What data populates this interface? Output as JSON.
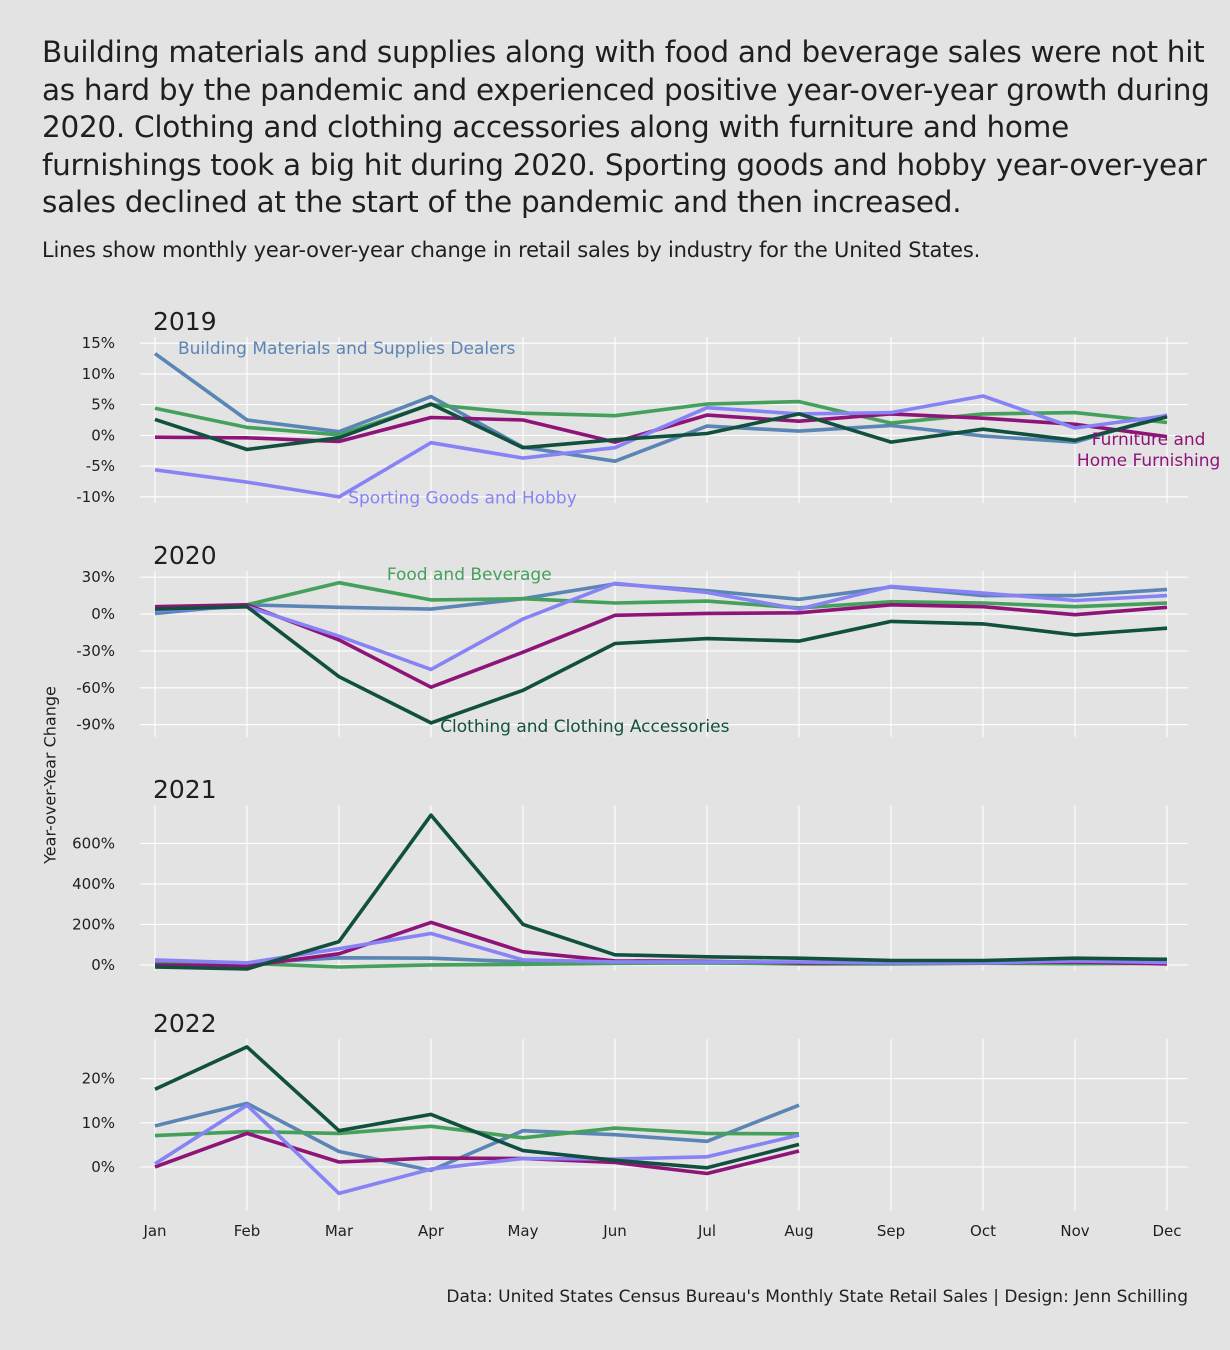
{
  "title": "Building materials and supplies along with food and beverage sales were not hit as hard by the pandemic and experienced positive year-over-year growth during 2020. Clothing and clothing accessories along with furniture and home furnishings took a big hit during 2020. Sporting goods and hobby year-over-year sales declined at the start of the pandemic and then increased.",
  "subtitle": "Lines show monthly year-over-year change in retail sales by industry for the United States.",
  "ylabel": "Year-over-Year Change",
  "caption": "Data: United States Census Bureau's Monthly State Retail Sales | Design: Jenn Schilling",
  "colors": {
    "building": "#5b85b5",
    "food": "#45a05c",
    "clothing": "#11503f",
    "furniture": "#8f1478",
    "sporting": "#8783f5",
    "grid": "#ffffff",
    "background": "#e3e3e3"
  },
  "chart_data": {
    "type": "line",
    "categories": [
      "Jan",
      "Feb",
      "Mar",
      "Apr",
      "May",
      "Jun",
      "Jul",
      "Aug",
      "Sep",
      "Oct",
      "Nov",
      "Dec"
    ],
    "panels": [
      {
        "title": "2019",
        "ylim": [
          -11,
          16
        ],
        "yticks": [
          -10,
          -5,
          0,
          5,
          10,
          15
        ],
        "ytick_labels": [
          "-10%",
          "-5%",
          "0%",
          "5%",
          "10%",
          "15%"
        ],
        "series": [
          {
            "key": "building",
            "name": "Building Materials and Supplies Dealers",
            "values": [
              13.3,
              2.5,
              0.6,
              6.3,
              -1.9,
              -4.2,
              1.5,
              0.7,
              1.6,
              -0.1,
              -1.1,
              3.3
            ]
          },
          {
            "key": "food",
            "values": [
              4.4,
              1.3,
              0.1,
              5.0,
              3.6,
              3.2,
              5.1,
              5.5,
              2.0,
              3.5,
              3.7,
              2.1
            ]
          },
          {
            "key": "clothing",
            "values": [
              2.6,
              -2.3,
              -0.4,
              5.1,
              -2.0,
              -0.7,
              0.3,
              3.5,
              -1.1,
              1.0,
              -0.8,
              3.0
            ]
          },
          {
            "key": "furniture",
            "name": "Furniture and Home Furnishing",
            "values": [
              -0.3,
              -0.4,
              -1.0,
              2.9,
              2.5,
              -1.1,
              3.3,
              2.3,
              3.5,
              2.8,
              1.8,
              -0.2
            ]
          },
          {
            "key": "sporting",
            "name": "Sporting Goods and Hobby",
            "values": [
              -5.6,
              -7.6,
              -10.0,
              -1.2,
              -3.7,
              -2.0,
              4.5,
              3.5,
              3.7,
              6.4,
              1.2,
              3.2
            ]
          }
        ],
        "labels": [
          {
            "key": "building",
            "lines": [
              "Building Materials and Supplies Dealers"
            ],
            "month": 0.25,
            "value": 13.2,
            "anchor": "start"
          },
          {
            "key": "sporting",
            "lines": [
              "Sporting Goods and Hobby"
            ],
            "month": 2.1,
            "value": -11.1,
            "anchor": "start"
          },
          {
            "key": "furniture",
            "lines": [
              "Furniture and",
              "Home Furnishing"
            ],
            "month": 10.8,
            "value": -1.6,
            "anchor": "middle"
          }
        ]
      },
      {
        "title": "2020",
        "ylim": [
          -100,
          35
        ],
        "yticks": [
          -90,
          -60,
          -30,
          0,
          30
        ],
        "ytick_labels": [
          "-90%",
          "-60%",
          "-30%",
          "0%",
          "30%"
        ],
        "series": [
          {
            "key": "building",
            "values": [
              0.5,
              7.5,
              5.5,
              4.0,
              12.5,
              24.5,
              19.0,
              12.0,
              22.0,
              15.0,
              15.0,
              20.0
            ]
          },
          {
            "key": "food",
            "name": "Food and Beverage",
            "values": [
              3.0,
              7.5,
              25.5,
              11.5,
              12.5,
              9.0,
              10.5,
              5.0,
              10.0,
              9.0,
              6.0,
              9.0
            ]
          },
          {
            "key": "clothing",
            "name": "Clothing and Clothing Accessories",
            "values": [
              4.0,
              6.0,
              -51.0,
              -88.5,
              -62.0,
              -24.0,
              -20.0,
              -22.0,
              -6.0,
              -8.0,
              -17.0,
              -11.5
            ]
          },
          {
            "key": "furniture",
            "values": [
              6.0,
              7.5,
              -21.0,
              -59.5,
              -31.0,
              -1.0,
              0.5,
              1.0,
              7.5,
              6.0,
              -0.5,
              5.5
            ]
          },
          {
            "key": "sporting",
            "values": [
              3.0,
              6.0,
              -18.0,
              -45.0,
              -4.0,
              25.0,
              17.5,
              4.0,
              22.5,
              17.0,
              11.0,
              15.0
            ]
          }
        ],
        "labels": [
          {
            "key": "food",
            "lines": [
              "Food and Beverage"
            ],
            "month": 2.52,
            "value": 27.5,
            "anchor": "start"
          },
          {
            "key": "clothing",
            "lines": [
              "Clothing and Clothing Accessories"
            ],
            "month": 3.1,
            "value": -96.0,
            "anchor": "start"
          }
        ]
      },
      {
        "title": "2021",
        "ylim": [
          -30,
          790
        ],
        "yticks": [
          0,
          200,
          400,
          600
        ],
        "ytick_labels": [
          "0%",
          "200%",
          "400%",
          "600%"
        ],
        "series": [
          {
            "key": "building",
            "values": [
              20,
              10,
              35,
              33,
              15,
              12,
              10,
              8,
              8,
              10,
              10,
              12
            ]
          },
          {
            "key": "food",
            "values": [
              5,
              8,
              -10,
              0,
              3,
              8,
              10,
              5,
              5,
              8,
              6,
              8
            ]
          },
          {
            "key": "clothing",
            "values": [
              -10,
              -20,
              115,
              740,
              200,
              50,
              40,
              33,
              22,
              22,
              33,
              28
            ]
          },
          {
            "key": "furniture",
            "values": [
              0,
              -5,
              55,
              210,
              65,
              20,
              18,
              10,
              10,
              10,
              15,
              5
            ]
          },
          {
            "key": "sporting",
            "values": [
              25,
              10,
              80,
              155,
              25,
              15,
              15,
              15,
              10,
              10,
              20,
              12
            ]
          }
        ],
        "labels": []
      },
      {
        "title": "2022",
        "ylim": [
          -10,
          29
        ],
        "yticks": [
          0,
          10,
          20
        ],
        "ytick_labels": [
          "0%",
          "10%",
          "20%"
        ],
        "series": [
          {
            "key": "building",
            "values": [
              9.3,
              14.4,
              3.5,
              -0.8,
              8.2,
              7.3,
              5.8,
              14.0
            ]
          },
          {
            "key": "food",
            "values": [
              7.1,
              8.0,
              7.6,
              9.2,
              6.6,
              8.8,
              7.6,
              7.5
            ]
          },
          {
            "key": "clothing",
            "values": [
              17.6,
              27.2,
              8.2,
              11.9,
              3.7,
              1.5,
              -0.2,
              5.1
            ]
          },
          {
            "key": "furniture",
            "values": [
              0.0,
              7.6,
              1.1,
              2.0,
              1.9,
              1.0,
              -1.5,
              3.6
            ]
          },
          {
            "key": "sporting",
            "values": [
              0.7,
              14.0,
              -6.0,
              -0.5,
              1.9,
              1.8,
              2.3,
              7.2
            ]
          }
        ],
        "labels": []
      }
    ]
  }
}
